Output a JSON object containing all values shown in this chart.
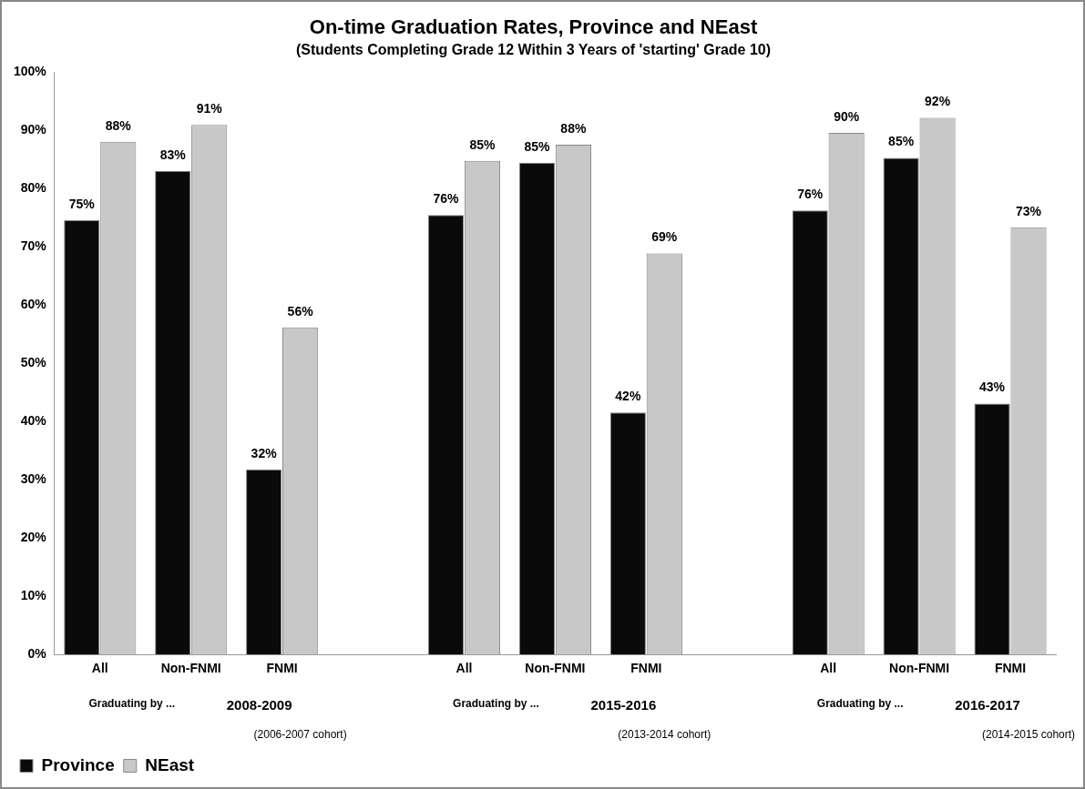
{
  "chart_data": {
    "type": "bar",
    "title": "On-time Graduation Rates, Province and NEast",
    "subtitle": "(Students Completing Grade 12 Within 3 Years of 'starting' Grade 10)",
    "categories": [
      "All",
      "Non-FNMI",
      "FNMI",
      null,
      "All",
      "Non-FNMI",
      "FNMI",
      null,
      "All",
      "Non-FNMI",
      "FNMI"
    ],
    "series": [
      {
        "name": "Province",
        "color": "#0a0a0a",
        "values": [
          74.6,
          83.1,
          31.8,
          null,
          75.5,
          84.5,
          41.6,
          null,
          76.3,
          85.3,
          43.1
        ],
        "value_labels": [
          "75%",
          "83%",
          "32%",
          null,
          "76%",
          "85%",
          "42%",
          null,
          "76%",
          "85%",
          "43%"
        ]
      },
      {
        "name": "NEast",
        "color": "#c8c8c8",
        "values": [
          88.1,
          91.0,
          56.2,
          null,
          84.8,
          87.6,
          68.9,
          null,
          89.6,
          92.2,
          73.4
        ],
        "value_labels": [
          "88%",
          "91%",
          "56%",
          null,
          "85%",
          "88%",
          "69%",
          null,
          "90%",
          "92%",
          "73%"
        ]
      }
    ],
    "ylim": [
      0,
      100
    ],
    "yticks": [
      {
        "value": 0,
        "label": "0%"
      },
      {
        "value": 10,
        "label": "10%"
      },
      {
        "value": 20,
        "label": "20%"
      },
      {
        "value": 30,
        "label": "30%"
      },
      {
        "value": 40,
        "label": "40%"
      },
      {
        "value": 50,
        "label": "50%"
      },
      {
        "value": 60,
        "label": "60%"
      },
      {
        "value": 70,
        "label": "70%"
      },
      {
        "value": 80,
        "label": "80%"
      },
      {
        "value": 90,
        "label": "90%"
      },
      {
        "value": 100,
        "label": "100%"
      }
    ],
    "grid": false,
    "legend": "bottom left",
    "annotations": [
      "Graduating by ...",
      "2008-2009",
      "(2006-2007 cohort)",
      "Graduating by ...",
      "2015-2016",
      "(2013-2014 cohort)",
      "Graduating by ...",
      "2016-2017",
      "(2014-2015 cohort)"
    ]
  }
}
